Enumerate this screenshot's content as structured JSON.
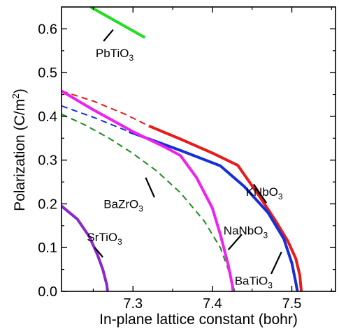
{
  "chart_data": {
    "type": "line",
    "xlabel": "In-plane lattice constant (bohr)",
    "ylabel_main": "Polarization (C/m",
    "ylabel_sup": "2",
    "ylabel_end": ")",
    "xlim": [
      7.21,
      7.555
    ],
    "ylim": [
      0.0,
      0.65
    ],
    "xticks": [
      7.3,
      7.4,
      7.5
    ],
    "xtick_labels": [
      "7.3",
      "7.4",
      "7.5"
    ],
    "yticks": [
      0.0,
      0.1,
      0.2,
      0.3,
      0.4,
      0.5,
      0.6
    ],
    "ytick_labels": [
      "0.0",
      "0.1",
      "0.2",
      "0.3",
      "0.4",
      "0.5",
      "0.6"
    ],
    "grid": false,
    "legend": "none",
    "series": [
      {
        "name": "PbTiO3",
        "label_main": "PbTiO",
        "label_sub": "3",
        "color": "#22dd22",
        "solid": [
          [
            7.2465,
            0.65
          ],
          [
            7.315,
            0.58
          ]
        ],
        "dashed": []
      },
      {
        "name": "KNbO3",
        "label_main": "KNbO",
        "label_sub": "3",
        "color": "#e81b1b",
        "solid": [
          [
            7.32,
            0.378
          ],
          [
            7.36,
            0.348
          ],
          [
            7.4,
            0.316
          ],
          [
            7.432,
            0.288
          ],
          [
            7.46,
            0.215
          ],
          [
            7.48,
            0.16
          ],
          [
            7.495,
            0.115
          ],
          [
            7.505,
            0.075
          ],
          [
            7.51,
            0.037
          ],
          [
            7.512,
            0.0
          ]
        ],
        "dashed": [
          [
            7.21,
            0.458
          ],
          [
            7.25,
            0.435
          ],
          [
            7.29,
            0.405
          ],
          [
            7.32,
            0.378
          ]
        ]
      },
      {
        "name": "BaTiO3",
        "label_main": "BaTiO",
        "label_sub": "3",
        "color": "#1530d8",
        "solid": [
          [
            7.295,
            0.365
          ],
          [
            7.36,
            0.322
          ],
          [
            7.41,
            0.287
          ],
          [
            7.44,
            0.24
          ],
          [
            7.47,
            0.18
          ],
          [
            7.49,
            0.12
          ],
          [
            7.5,
            0.065
          ],
          [
            7.505,
            0.02
          ],
          [
            7.507,
            0.0
          ]
        ],
        "dashed": [
          [
            7.21,
            0.424
          ],
          [
            7.25,
            0.398
          ],
          [
            7.295,
            0.365
          ]
        ]
      },
      {
        "name": "NaNbO3",
        "label_main": "NaNbO",
        "label_sub": "3",
        "color": "#ee22ee",
        "solid": [
          [
            7.21,
            0.458
          ],
          [
            7.25,
            0.415
          ],
          [
            7.3,
            0.365
          ],
          [
            7.34,
            0.33
          ],
          [
            7.36,
            0.31
          ],
          [
            7.38,
            0.26
          ],
          [
            7.4,
            0.19
          ],
          [
            7.41,
            0.13
          ],
          [
            7.42,
            0.06
          ],
          [
            7.425,
            0.015
          ],
          [
            7.426,
            0.0
          ]
        ],
        "dashed": []
      },
      {
        "name": "BaZrO3",
        "label_main": "BaZrO",
        "label_sub": "3",
        "color": "#1e8a1e",
        "solid": [],
        "dashed": [
          [
            7.21,
            0.405
          ],
          [
            7.24,
            0.38
          ],
          [
            7.27,
            0.35
          ],
          [
            7.3,
            0.315
          ],
          [
            7.33,
            0.275
          ],
          [
            7.36,
            0.225
          ],
          [
            7.39,
            0.16
          ],
          [
            7.41,
            0.1
          ],
          [
            7.42,
            0.05
          ],
          [
            7.428,
            0.0
          ]
        ]
      },
      {
        "name": "SrTiO3",
        "label_main": "SrTiO",
        "label_sub": "3",
        "color": "#8a28c8",
        "solid": [
          [
            7.21,
            0.195
          ],
          [
            7.23,
            0.165
          ],
          [
            7.245,
            0.125
          ],
          [
            7.255,
            0.085
          ],
          [
            7.262,
            0.05
          ],
          [
            7.267,
            0.015
          ],
          [
            7.268,
            0.0
          ]
        ],
        "dashed": []
      }
    ],
    "annotations": [
      {
        "series": "PbTiO3",
        "text_x": 7.253,
        "text_y": 0.535,
        "line": [
          [
            7.263,
            0.572
          ],
          [
            7.275,
            0.598
          ]
        ]
      },
      {
        "series": "KNbO3",
        "text_x": 7.442,
        "text_y": 0.218,
        "line": [
          [
            7.452,
            0.245
          ],
          [
            7.468,
            0.202
          ]
        ]
      },
      {
        "series": "BaTiO3",
        "text_x": 7.428,
        "text_y": 0.015,
        "line": [
          [
            7.474,
            0.04
          ],
          [
            7.487,
            0.09
          ]
        ]
      },
      {
        "series": "NaNbO3",
        "text_x": 7.414,
        "text_y": 0.13,
        "line": [
          [
            7.42,
            0.095
          ],
          [
            7.437,
            0.13
          ]
        ]
      },
      {
        "series": "BaZrO3",
        "text_x": 7.263,
        "text_y": 0.19,
        "line": [
          [
            7.327,
            0.215
          ],
          [
            7.316,
            0.26
          ]
        ]
      },
      {
        "series": "SrTiO3",
        "text_x": 7.242,
        "text_y": 0.115,
        "line": [
          [
            7.252,
            0.1
          ],
          [
            7.262,
            0.078
          ]
        ]
      }
    ]
  }
}
